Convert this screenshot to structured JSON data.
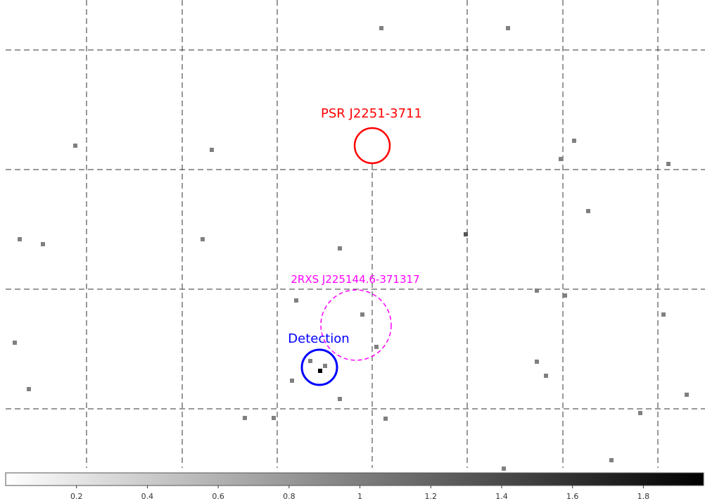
{
  "sources": [
    {
      "label": "PSR J2251-3711",
      "color": "#ff0000"
    },
    {
      "label": "2RXS J225144.6-371317",
      "color": "#ff00ff"
    },
    {
      "label": "Detection",
      "color": "#0000ff"
    }
  ],
  "colorbar": {
    "lim": [
      0,
      1.97
    ],
    "ticks": [
      0.2,
      0.4,
      0.6,
      0.8,
      1,
      1.2,
      1.4,
      1.6,
      1.8
    ]
  }
}
